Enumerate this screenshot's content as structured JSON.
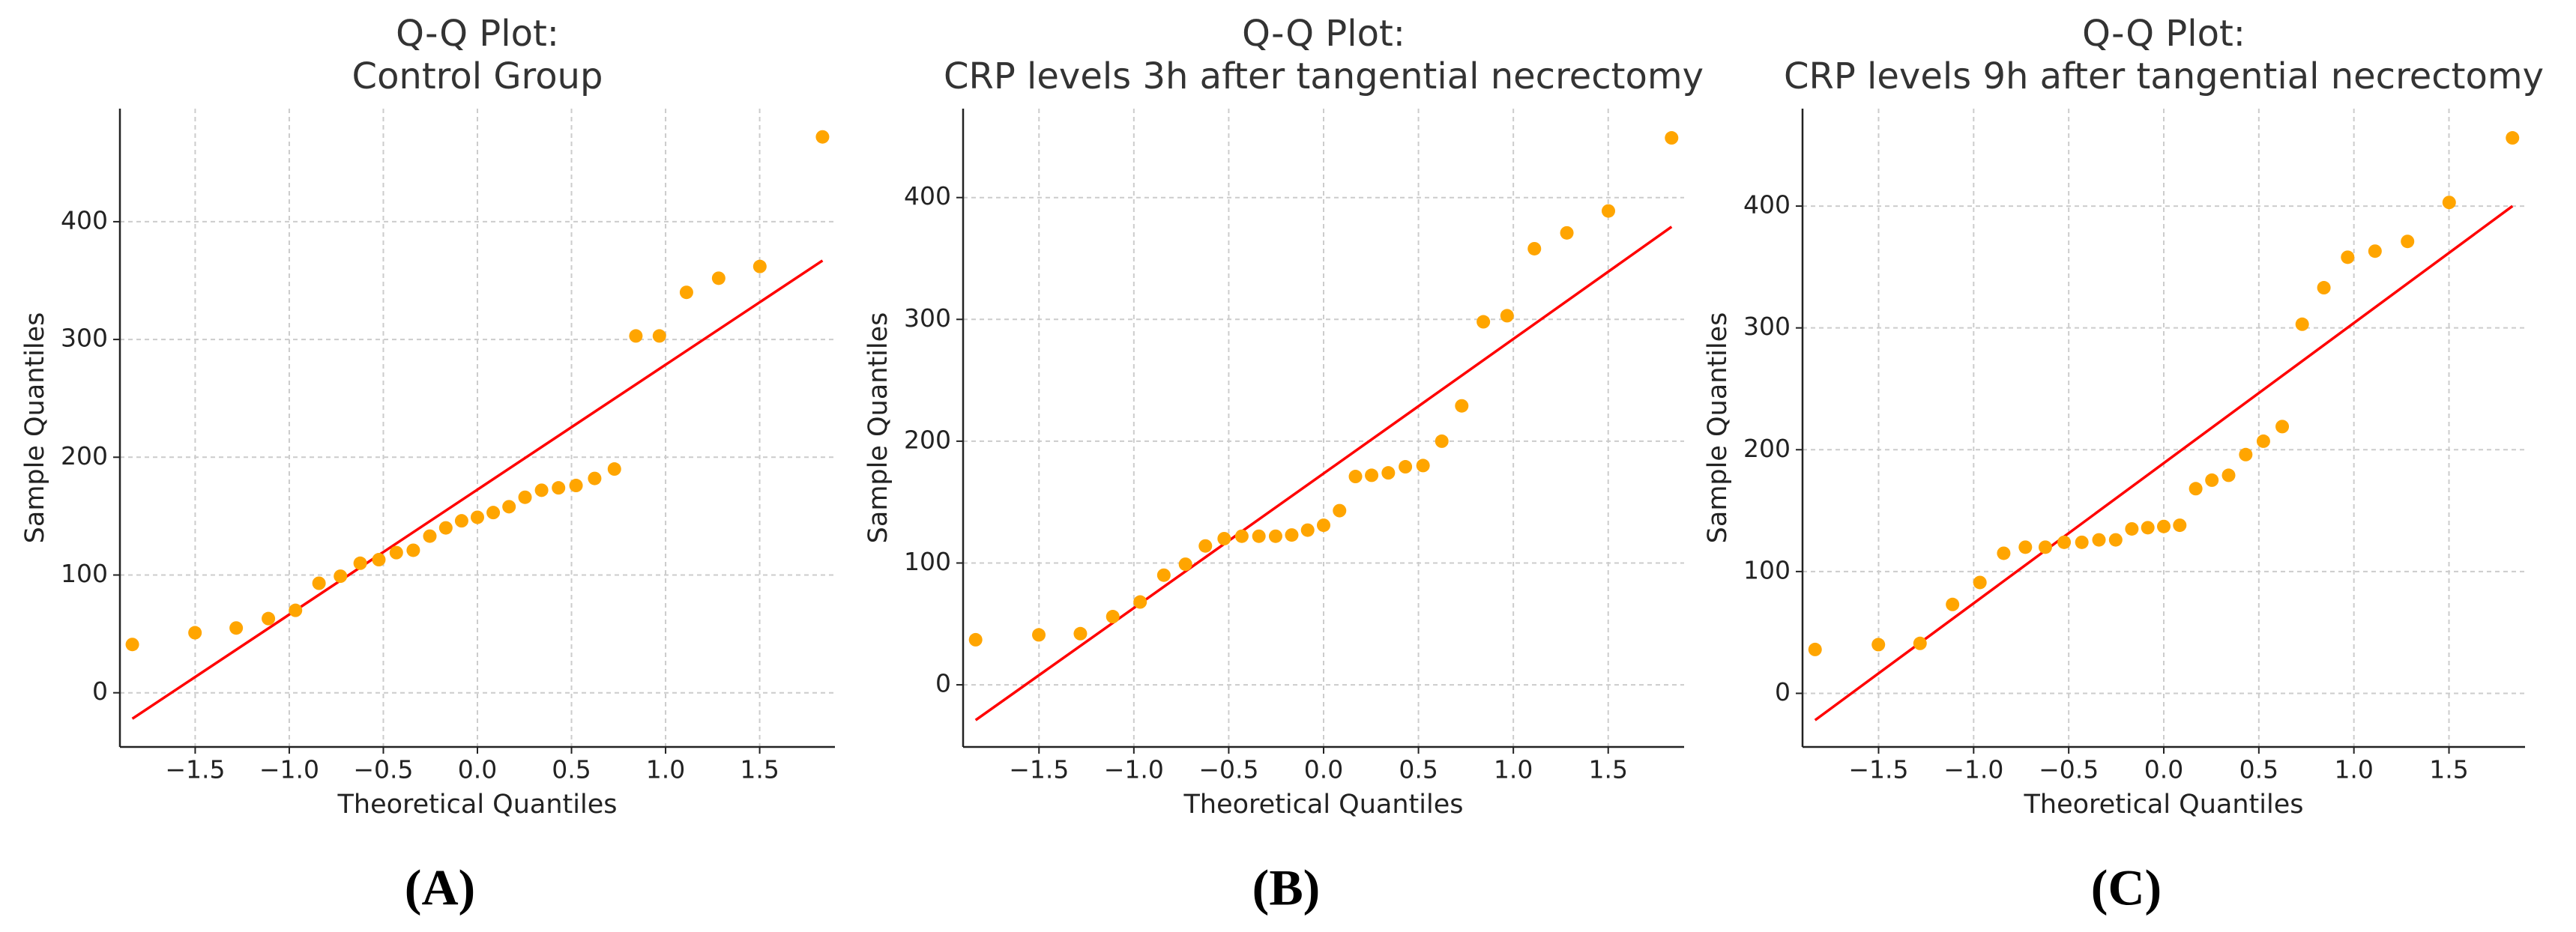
{
  "chart_data": [
    {
      "type": "scatter",
      "title": [
        "Q-Q Plot:",
        "Control Group"
      ],
      "caption": "(A)",
      "x_label": "Theoretical Quantiles",
      "y_label": "Sample Quantiles",
      "color": "#ffa500",
      "line_color": "#ff0000",
      "grid": true,
      "x": [
        -1.834,
        -1.501,
        -1.282,
        -1.111,
        -0.967,
        -0.842,
        -0.728,
        -0.623,
        -0.524,
        -0.431,
        -0.341,
        -0.253,
        -0.168,
        -0.084,
        0,
        0.084,
        0.168,
        0.253,
        0.341,
        0.431,
        0.524,
        0.623,
        0.728,
        0.842,
        0.967,
        1.111,
        1.282,
        1.501,
        1.834
      ],
      "y": [
        41,
        51,
        55,
        63,
        70,
        93,
        99,
        110,
        113,
        119,
        121,
        133,
        140,
        146,
        149,
        153,
        158,
        166,
        172,
        174,
        176,
        182,
        190,
        303,
        303,
        340,
        352,
        362,
        472
      ],
      "line": {
        "x": [
          -1.834,
          1.834
        ],
        "y": [
          -22,
          367
        ]
      },
      "xlim": [
        -1.9,
        1.9
      ],
      "ylim": [
        -46,
        496
      ],
      "xticks": [
        {
          "value": -1.5,
          "label": "−1.5"
        },
        {
          "value": -1,
          "label": "−1.0"
        },
        {
          "value": -0.5,
          "label": "−0.5"
        },
        {
          "value": 0,
          "label": "0.0"
        },
        {
          "value": 0.5,
          "label": "0.5"
        },
        {
          "value": 1,
          "label": "1.0"
        },
        {
          "value": 1.5,
          "label": "1.5"
        }
      ],
      "yticks": [
        0,
        100,
        200,
        300,
        400
      ]
    },
    {
      "type": "scatter",
      "title": [
        "Q-Q Plot:",
        "CRP levels 3h after tangential necrectomy"
      ],
      "caption": "(B)",
      "x_label": "Theoretical Quantiles",
      "y_label": "Sample Quantiles",
      "color": "#ffa500",
      "line_color": "#ff0000",
      "grid": true,
      "x": [
        -1.834,
        -1.501,
        -1.282,
        -1.111,
        -0.967,
        -0.842,
        -0.728,
        -0.623,
        -0.524,
        -0.431,
        -0.341,
        -0.253,
        -0.168,
        -0.084,
        0,
        0.084,
        0.168,
        0.253,
        0.341,
        0.431,
        0.524,
        0.623,
        0.728,
        0.842,
        0.967,
        1.111,
        1.282,
        1.501,
        1.834
      ],
      "y": [
        37,
        41,
        42,
        56,
        68,
        90,
        99,
        114,
        120,
        122,
        122,
        122,
        123,
        127,
        131,
        143,
        171,
        172,
        174,
        179,
        180,
        200,
        229,
        298,
        303,
        358,
        371,
        389,
        449
      ],
      "line": {
        "x": [
          -1.834,
          1.834
        ],
        "y": [
          -29,
          376
        ]
      },
      "xlim": [
        -1.9,
        1.9
      ],
      "ylim": [
        -51,
        473
      ],
      "xticks": [
        {
          "value": -1.5,
          "label": "−1.5"
        },
        {
          "value": -1,
          "label": "−1.0"
        },
        {
          "value": -0.5,
          "label": "−0.5"
        },
        {
          "value": 0,
          "label": "0.0"
        },
        {
          "value": 0.5,
          "label": "0.5"
        },
        {
          "value": 1,
          "label": "1.0"
        },
        {
          "value": 1.5,
          "label": "1.5"
        }
      ],
      "yticks": [
        0,
        100,
        200,
        300,
        400
      ]
    },
    {
      "type": "scatter",
      "title": [
        "Q-Q Plot:",
        "CRP levels 9h after tangential necrectomy"
      ],
      "caption": "(C)",
      "x_label": "Theoretical Quantiles",
      "y_label": "Sample Quantiles",
      "color": "#ffa500",
      "line_color": "#ff0000",
      "grid": true,
      "x": [
        -1.834,
        -1.501,
        -1.282,
        -1.111,
        -0.967,
        -0.842,
        -0.728,
        -0.623,
        -0.524,
        -0.431,
        -0.341,
        -0.253,
        -0.168,
        -0.084,
        0,
        0.084,
        0.168,
        0.253,
        0.341,
        0.431,
        0.524,
        0.623,
        0.728,
        0.842,
        0.967,
        1.111,
        1.282,
        1.501,
        1.834
      ],
      "y": [
        36,
        40,
        41,
        73,
        91,
        115,
        120,
        120,
        124,
        124,
        126,
        126,
        135,
        136,
        137,
        138,
        168,
        175,
        179,
        196,
        207,
        219,
        303,
        333,
        358,
        363,
        371,
        403,
        456
      ],
      "line": {
        "x": [
          -1.834,
          1.834
        ],
        "y": [
          -22,
          400
        ]
      },
      "xlim": [
        -1.9,
        1.9
      ],
      "ylim": [
        -44,
        480
      ],
      "xticks": [
        {
          "value": -1.5,
          "label": "−1.5"
        },
        {
          "value": -1,
          "label": "−1.0"
        },
        {
          "value": -0.5,
          "label": "−0.5"
        },
        {
          "value": 0,
          "label": "0.0"
        },
        {
          "value": 0.5,
          "label": "0.5"
        },
        {
          "value": 1,
          "label": "1.0"
        },
        {
          "value": 1.5,
          "label": "1.5"
        }
      ],
      "yticks": [
        0,
        100,
        200,
        300,
        400
      ]
    }
  ]
}
